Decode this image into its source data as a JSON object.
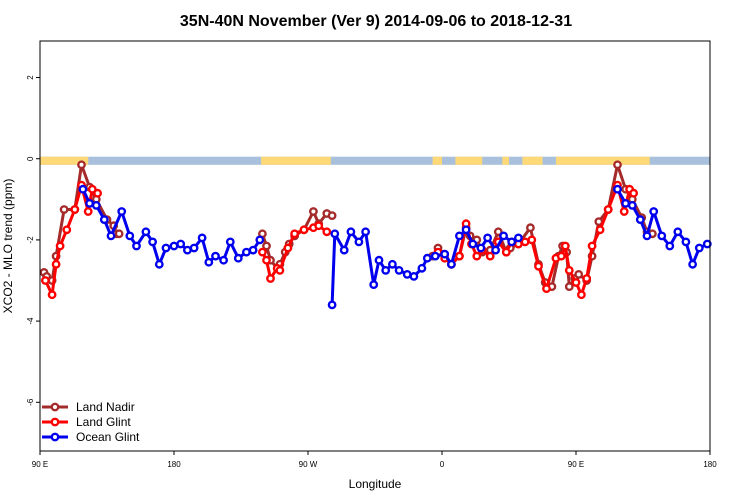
{
  "colors": {
    "land_nadir": "#a52a2a",
    "land_glint": "#ff0000",
    "ocean_glint": "#0000ee",
    "ocean_band": "#a8c0dc",
    "land_band": "#ffd978"
  },
  "chart_data": {
    "type": "line",
    "title": "35N-40N November (Ver 9)   2014-09-06 to 2018-12-31",
    "xlabel": "Longitude",
    "ylabel": "XCO2 - MLO trend (ppm)",
    "xlim": [
      0,
      500
    ],
    "ylim": [
      -7.2,
      2.9
    ],
    "xticks": [
      {
        "value": 0,
        "label": "90 E"
      },
      {
        "value": 100,
        "label": "180"
      },
      {
        "value": 200,
        "label": "90 W"
      },
      {
        "value": 300,
        "label": "0"
      },
      {
        "value": 400,
        "label": "90 E"
      },
      {
        "value": 500,
        "label": "180"
      }
    ],
    "yticks": [
      {
        "value": 2,
        "label": "2"
      },
      {
        "value": 0,
        "label": "0"
      },
      {
        "value": -2,
        "label": "-2"
      },
      {
        "value": -4,
        "label": "-4"
      },
      {
        "value": -6,
        "label": "-6"
      }
    ],
    "grid": false,
    "legend_position": "bottom-left",
    "band": {
      "y_top": 0.05,
      "y_bottom": -0.15,
      "land_ranges": [
        [
          0,
          36
        ],
        [
          165,
          217
        ],
        [
          293,
          300
        ],
        [
          310,
          330
        ],
        [
          345,
          350
        ],
        [
          360,
          375
        ],
        [
          385,
          455
        ]
      ]
    },
    "series": [
      {
        "name": "Land Nadir",
        "key": "land_nadir",
        "segments": [
          [
            [
              3,
              -2.8
            ],
            [
              5,
              -2.9
            ],
            [
              9,
              -3.0
            ],
            [
              12,
              -2.4
            ],
            [
              18,
              -1.25
            ],
            [
              26,
              -1.25
            ],
            [
              31,
              -0.15
            ],
            [
              37,
              -0.7
            ],
            [
              42,
              -1.0
            ],
            [
              50,
              -1.5
            ],
            [
              55,
              -1.65
            ],
            [
              57,
              -1.85
            ],
            [
              59,
              -1.85
            ]
          ],
          [
            [
              166,
              -1.85
            ],
            [
              169,
              -2.15
            ],
            [
              172,
              -2.5
            ],
            [
              177,
              -2.7
            ],
            [
              179,
              -2.6
            ],
            [
              183,
              -2.3
            ],
            [
              186,
              -2.1
            ],
            [
              190,
              -1.9
            ],
            [
              197,
              -1.75
            ],
            [
              204,
              -1.3
            ],
            [
              208,
              -1.6
            ],
            [
              214,
              -1.35
            ],
            [
              218,
              -1.4
            ]
          ],
          [
            [
              293,
              -2.4
            ],
            [
              297,
              -2.2
            ],
            [
              302,
              -2.35
            ],
            [
              307,
              -2.6
            ],
            [
              313,
              -2.4
            ],
            [
              318,
              -1.7
            ],
            [
              321,
              -1.9
            ],
            [
              326,
              -2.0
            ],
            [
              330,
              -2.3
            ],
            [
              336,
              -2.25
            ],
            [
              342,
              -1.8
            ],
            [
              348,
              -2.3
            ],
            [
              351,
              -2.2
            ],
            [
              357,
              -2.1
            ],
            [
              366,
              -1.7
            ],
            [
              372,
              -2.6
            ],
            [
              377,
              -3.05
            ],
            [
              382,
              -3.15
            ],
            [
              387,
              -2.4
            ],
            [
              390,
              -2.15
            ],
            [
              393,
              -2.3
            ],
            [
              395,
              -3.15
            ],
            [
              399,
              -2.95
            ],
            [
              402,
              -2.85
            ],
            [
              408,
              -3.0
            ],
            [
              412,
              -2.4
            ],
            [
              417,
              -1.55
            ],
            [
              424,
              -1.25
            ],
            [
              431,
              -0.15
            ],
            [
              437,
              -0.75
            ],
            [
              442,
              -1.0
            ],
            [
              449,
              -1.45
            ],
            [
              453,
              -1.8
            ],
            [
              457,
              -1.85
            ]
          ]
        ]
      },
      {
        "name": "Land Glint",
        "key": "land_glint",
        "segments": [
          [
            [
              4,
              -3.0
            ],
            [
              9,
              -3.35
            ],
            [
              12,
              -2.6
            ],
            [
              15,
              -2.15
            ],
            [
              20,
              -1.75
            ],
            [
              26,
              -1.25
            ],
            [
              31,
              -0.65
            ],
            [
              36,
              -1.3
            ],
            [
              39,
              -0.75
            ],
            [
              43,
              -0.85
            ]
          ],
          [
            [
              166,
              -2.3
            ],
            [
              169,
              -2.5
            ],
            [
              172,
              -2.95
            ],
            [
              177,
              -2.7
            ],
            [
              179,
              -2.75
            ],
            [
              185,
              -2.2
            ],
            [
              190,
              -1.85
            ],
            [
              197,
              -1.75
            ],
            [
              204,
              -1.7
            ],
            [
              208,
              -1.65
            ],
            [
              214,
              -1.8
            ]
          ],
          [
            [
              297,
              -2.3
            ],
            [
              302,
              -2.45
            ],
            [
              307,
              -2.6
            ],
            [
              313,
              -2.4
            ],
            [
              318,
              -1.6
            ],
            [
              322,
              -2.1
            ],
            [
              326,
              -2.4
            ],
            [
              330,
              -2.25
            ],
            [
              336,
              -2.4
            ],
            [
              342,
              -2.05
            ],
            [
              348,
              -2.3
            ],
            [
              352,
              -2.05
            ],
            [
              357,
              -2.1
            ],
            [
              362,
              -2.05
            ],
            [
              367,
              -2.0
            ],
            [
              372,
              -2.65
            ],
            [
              378,
              -3.2
            ],
            [
              385,
              -2.45
            ],
            [
              389,
              -2.4
            ],
            [
              392,
              -2.15
            ],
            [
              395,
              -2.75
            ],
            [
              400,
              -3.05
            ],
            [
              404,
              -3.35
            ],
            [
              408,
              -2.95
            ],
            [
              412,
              -2.15
            ],
            [
              418,
              -1.75
            ],
            [
              424,
              -1.25
            ],
            [
              431,
              -0.65
            ],
            [
              436,
              -1.3
            ],
            [
              440,
              -0.75
            ],
            [
              443,
              -0.85
            ]
          ]
        ]
      },
      {
        "name": "Ocean Glint",
        "key": "ocean_glint",
        "segments": [
          [
            [
              32,
              -0.75
            ],
            [
              37,
              -1.1
            ],
            [
              42,
              -1.15
            ],
            [
              48,
              -1.5
            ],
            [
              53,
              -1.9
            ],
            [
              61,
              -1.3
            ],
            [
              67,
              -1.9
            ],
            [
              72,
              -2.15
            ],
            [
              79,
              -1.8
            ],
            [
              84,
              -2.05
            ],
            [
              89,
              -2.6
            ],
            [
              94,
              -2.2
            ],
            [
              100,
              -2.15
            ],
            [
              105,
              -2.1
            ],
            [
              110,
              -2.25
            ],
            [
              115,
              -2.2
            ],
            [
              121,
              -1.95
            ],
            [
              126,
              -2.55
            ],
            [
              131,
              -2.4
            ],
            [
              137,
              -2.5
            ],
            [
              142,
              -2.05
            ],
            [
              148,
              -2.45
            ],
            [
              154,
              -2.3
            ],
            [
              159,
              -2.25
            ],
            [
              164,
              -2.0
            ]
          ],
          [
            [
              218,
              -3.6
            ],
            [
              220,
              -1.85
            ],
            [
              227,
              -2.25
            ],
            [
              232,
              -1.8
            ],
            [
              238,
              -2.05
            ],
            [
              243,
              -1.8
            ],
            [
              249,
              -3.1
            ],
            [
              253,
              -2.5
            ],
            [
              258,
              -2.75
            ],
            [
              263,
              -2.6
            ],
            [
              268,
              -2.75
            ],
            [
              274,
              -2.85
            ],
            [
              279,
              -2.9
            ],
            [
              285,
              -2.7
            ],
            [
              289,
              -2.45
            ],
            [
              295,
              -2.4
            ],
            [
              302,
              -2.35
            ],
            [
              307,
              -2.6
            ],
            [
              313,
              -1.9
            ],
            [
              318,
              -1.75
            ],
            [
              323,
              -2.1
            ],
            [
              329,
              -2.2
            ],
            [
              334,
              -1.95
            ],
            [
              340,
              -2.25
            ],
            [
              346,
              -1.9
            ],
            [
              352,
              -2.05
            ],
            [
              357,
              -1.95
            ]
          ],
          [
            [
              431,
              -0.75
            ],
            [
              437,
              -1.1
            ],
            [
              442,
              -1.15
            ],
            [
              448,
              -1.5
            ],
            [
              453,
              -1.9
            ],
            [
              458,
              -1.3
            ],
            [
              464,
              -1.9
            ],
            [
              470,
              -2.15
            ],
            [
              476,
              -1.8
            ],
            [
              482,
              -2.05
            ],
            [
              487,
              -2.6
            ],
            [
              492,
              -2.2
            ],
            [
              498,
              -2.1
            ]
          ]
        ]
      }
    ]
  }
}
